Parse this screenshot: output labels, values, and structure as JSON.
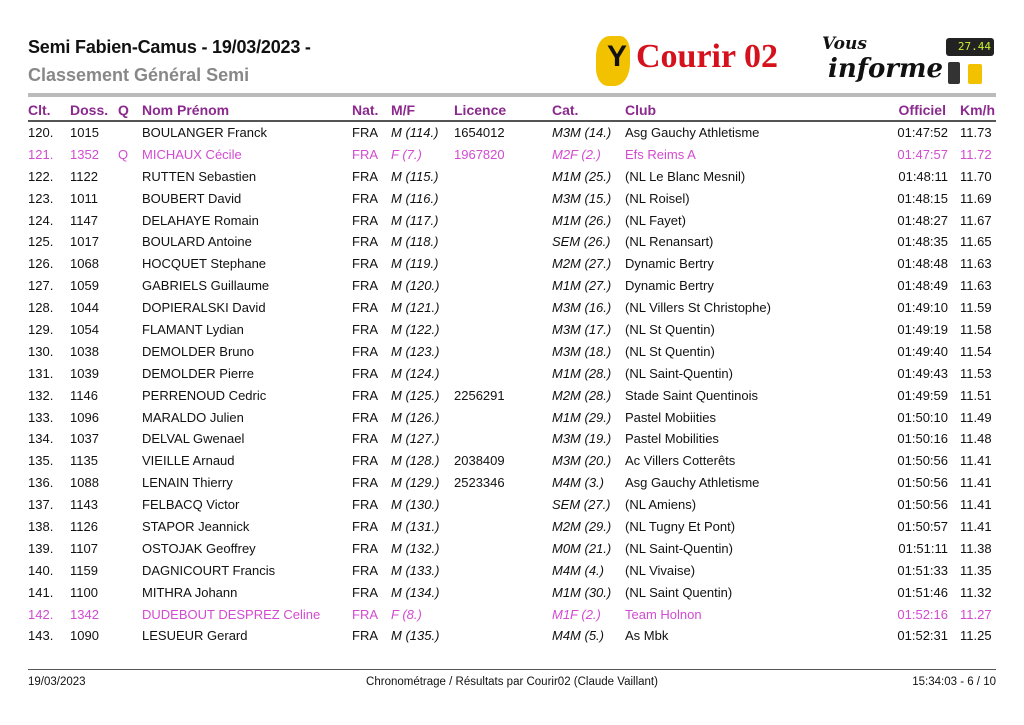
{
  "header": {
    "title": "Semi Fabien-Camus  - 19/03/2023 -",
    "subtitle": "Classement Général Semi",
    "logo": {
      "brand": "Courir 02",
      "tagline_1": "Vous",
      "tagline_2": "informe",
      "chrono": "27.44"
    }
  },
  "columns": {
    "clt": "Clt.",
    "doss": "Doss.",
    "q": "Q",
    "name": "Nom Prénom",
    "nat": "Nat.",
    "mf": "M/F",
    "licence": "Licence",
    "cat": "Cat.",
    "club": "Club",
    "officiel": "Officiel",
    "kmh": "Km/h"
  },
  "colors": {
    "header_accent": "#8b2a8e",
    "female_highlight": "#d24bd0"
  },
  "rows": [
    {
      "clt": "120.",
      "doss": "1015",
      "q": "",
      "name": "BOULANGER Franck",
      "nat": "FRA",
      "mf": "M (114.)",
      "licence": "1654012",
      "cat": "M3M (14.)",
      "club": "Asg Gauchy Athletisme",
      "officiel": "01:47:52",
      "kmh": "11.73",
      "female": false
    },
    {
      "clt": "121.",
      "doss": "1352",
      "q": "Q",
      "name": "MICHAUX Cécile",
      "nat": "FRA",
      "mf": "F (7.)",
      "licence": "1967820",
      "cat": "M2F (2.)",
      "club": "Efs Reims A",
      "officiel": "01:47:57",
      "kmh": "11.72",
      "female": true
    },
    {
      "clt": "122.",
      "doss": "1122",
      "q": "",
      "name": "RUTTEN Sebastien",
      "nat": "FRA",
      "mf": "M (115.)",
      "licence": "",
      "cat": "M1M (25.)",
      "club": "(NL Le Blanc Mesnil)",
      "officiel": "01:48:11",
      "kmh": "11.70",
      "female": false
    },
    {
      "clt": "123.",
      "doss": "1011",
      "q": "",
      "name": "BOUBERT David",
      "nat": "FRA",
      "mf": "M (116.)",
      "licence": "",
      "cat": "M3M (15.)",
      "club": "(NL Roisel)",
      "officiel": "01:48:15",
      "kmh": "11.69",
      "female": false
    },
    {
      "clt": "124.",
      "doss": "1147",
      "q": "",
      "name": "DELAHAYE Romain",
      "nat": "FRA",
      "mf": "M (117.)",
      "licence": "",
      "cat": "M1M (26.)",
      "club": "(NL Fayet)",
      "officiel": "01:48:27",
      "kmh": "11.67",
      "female": false
    },
    {
      "clt": "125.",
      "doss": "1017",
      "q": "",
      "name": "BOULARD Antoine",
      "nat": "FRA",
      "mf": "M (118.)",
      "licence": "",
      "cat": "SEM (26.)",
      "club": "(NL Renansart)",
      "officiel": "01:48:35",
      "kmh": "11.65",
      "female": false
    },
    {
      "clt": "126.",
      "doss": "1068",
      "q": "",
      "name": "HOCQUET Stephane",
      "nat": "FRA",
      "mf": "M (119.)",
      "licence": "",
      "cat": "M2M (27.)",
      "club": "Dynamic Bertry",
      "officiel": "01:48:48",
      "kmh": "11.63",
      "female": false
    },
    {
      "clt": "127.",
      "doss": "1059",
      "q": "",
      "name": "GABRIELS Guillaume",
      "nat": "FRA",
      "mf": "M (120.)",
      "licence": "",
      "cat": "M1M (27.)",
      "club": "Dynamic Bertry",
      "officiel": "01:48:49",
      "kmh": "11.63",
      "female": false
    },
    {
      "clt": "128.",
      "doss": "1044",
      "q": "",
      "name": "DOPIERALSKI David",
      "nat": "FRA",
      "mf": "M (121.)",
      "licence": "",
      "cat": "M3M (16.)",
      "club": "(NL Villers St Christophe)",
      "officiel": "01:49:10",
      "kmh": "11.59",
      "female": false
    },
    {
      "clt": "129.",
      "doss": "1054",
      "q": "",
      "name": "FLAMANT Lydian",
      "nat": "FRA",
      "mf": "M (122.)",
      "licence": "",
      "cat": "M3M (17.)",
      "club": "(NL St Quentin)",
      "officiel": "01:49:19",
      "kmh": "11.58",
      "female": false
    },
    {
      "clt": "130.",
      "doss": "1038",
      "q": "",
      "name": "DEMOLDER Bruno",
      "nat": "FRA",
      "mf": "M (123.)",
      "licence": "",
      "cat": "M3M (18.)",
      "club": "(NL St Quentin)",
      "officiel": "01:49:40",
      "kmh": "11.54",
      "female": false
    },
    {
      "clt": "131.",
      "doss": "1039",
      "q": "",
      "name": "DEMOLDER Pierre",
      "nat": "FRA",
      "mf": "M (124.)",
      "licence": "",
      "cat": "M1M (28.)",
      "club": "(NL Saint-Quentin)",
      "officiel": "01:49:43",
      "kmh": "11.53",
      "female": false
    },
    {
      "clt": "132.",
      "doss": "1146",
      "q": "",
      "name": "PERRENOUD Cedric",
      "nat": "FRA",
      "mf": "M (125.)",
      "licence": "2256291",
      "cat": "M2M (28.)",
      "club": "Stade Saint Quentinois",
      "officiel": "01:49:59",
      "kmh": "11.51",
      "female": false
    },
    {
      "clt": "133.",
      "doss": "1096",
      "q": "",
      "name": "MARALDO Julien",
      "nat": "FRA",
      "mf": "M (126.)",
      "licence": "",
      "cat": "M1M (29.)",
      "club": "Pastel Mobiities",
      "officiel": "01:50:10",
      "kmh": "11.49",
      "female": false
    },
    {
      "clt": "134.",
      "doss": "1037",
      "q": "",
      "name": "DELVAL Gwenael",
      "nat": "FRA",
      "mf": "M (127.)",
      "licence": "",
      "cat": "M3M (19.)",
      "club": "Pastel Mobilities",
      "officiel": "01:50:16",
      "kmh": "11.48",
      "female": false
    },
    {
      "clt": "135.",
      "doss": "1135",
      "q": "",
      "name": "VIEILLE Arnaud",
      "nat": "FRA",
      "mf": "M (128.)",
      "licence": "2038409",
      "cat": "M3M (20.)",
      "club": "Ac Villers Cotterêts",
      "officiel": "01:50:56",
      "kmh": "11.41",
      "female": false
    },
    {
      "clt": "136.",
      "doss": "1088",
      "q": "",
      "name": "LENAIN Thierry",
      "nat": "FRA",
      "mf": "M (129.)",
      "licence": "2523346",
      "cat": "M4M (3.)",
      "club": "Asg Gauchy Athletisme",
      "officiel": "01:50:56",
      "kmh": "11.41",
      "female": false
    },
    {
      "clt": "137.",
      "doss": "1143",
      "q": "",
      "name": "FELBACQ Victor",
      "nat": "FRA",
      "mf": "M (130.)",
      "licence": "",
      "cat": "SEM (27.)",
      "club": "(NL Amiens)",
      "officiel": "01:50:56",
      "kmh": "11.41",
      "female": false
    },
    {
      "clt": "138.",
      "doss": "1126",
      "q": "",
      "name": "STAPOR Jeannick",
      "nat": "FRA",
      "mf": "M (131.)",
      "licence": "",
      "cat": "M2M (29.)",
      "club": "(NL Tugny Et Pont)",
      "officiel": "01:50:57",
      "kmh": "11.41",
      "female": false
    },
    {
      "clt": "139.",
      "doss": "1107",
      "q": "",
      "name": "OSTOJAK Geoffrey",
      "nat": "FRA",
      "mf": "M (132.)",
      "licence": "",
      "cat": "M0M (21.)",
      "club": "(NL Saint-Quentin)",
      "officiel": "01:51:11",
      "kmh": "11.38",
      "female": false
    },
    {
      "clt": "140.",
      "doss": "1159",
      "q": "",
      "name": "DAGNICOURT Francis",
      "nat": "FRA",
      "mf": "M (133.)",
      "licence": "",
      "cat": "M4M (4.)",
      "club": "(NL Vivaise)",
      "officiel": "01:51:33",
      "kmh": "11.35",
      "female": false
    },
    {
      "clt": "141.",
      "doss": "1100",
      "q": "",
      "name": "MITHRA Johann",
      "nat": "FRA",
      "mf": "M (134.)",
      "licence": "",
      "cat": "M1M (30.)",
      "club": "(NL Saint Quentin)",
      "officiel": "01:51:46",
      "kmh": "11.32",
      "female": false
    },
    {
      "clt": "142.",
      "doss": "1342",
      "q": "",
      "name": "DUDEBOUT DESPREZ Celine",
      "nat": "FRA",
      "mf": "F (8.)",
      "licence": "",
      "cat": "M1F (2.)",
      "club": "Team Holnon",
      "officiel": "01:52:16",
      "kmh": "11.27",
      "female": true
    },
    {
      "clt": "143.",
      "doss": "1090",
      "q": "",
      "name": "LESUEUR Gerard",
      "nat": "FRA",
      "mf": "M (135.)",
      "licence": "",
      "cat": "M4M (5.)",
      "club": "As Mbk",
      "officiel": "01:52:31",
      "kmh": "11.25",
      "female": false
    }
  ],
  "footer": {
    "date": "19/03/2023",
    "credit": "Chronométrage / Résultats par Courir02 (Claude Vaillant)",
    "time_page": "15:34:03  -  6 / 10"
  }
}
